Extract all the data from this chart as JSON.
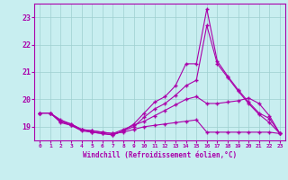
{
  "xlabel": "Windchill (Refroidissement éolien,°C)",
  "background_color": "#c8eef0",
  "grid_color": "#9ecfcf",
  "line_color": "#aa00aa",
  "x": [
    0,
    1,
    2,
    3,
    4,
    5,
    6,
    7,
    8,
    9,
    10,
    11,
    12,
    13,
    14,
    15,
    16,
    17,
    18,
    19,
    20,
    21,
    22,
    23
  ],
  "line1": [
    19.5,
    19.5,
    19.2,
    19.05,
    18.9,
    18.8,
    18.75,
    18.7,
    18.85,
    19.1,
    19.5,
    19.9,
    20.1,
    20.5,
    21.3,
    21.3,
    23.3,
    21.4,
    20.85,
    20.35,
    19.9,
    19.5,
    19.3,
    18.75
  ],
  "line2": [
    19.5,
    19.5,
    19.15,
    19.05,
    18.85,
    18.8,
    18.75,
    18.7,
    18.85,
    19.0,
    19.35,
    19.65,
    19.85,
    20.15,
    20.5,
    20.7,
    22.7,
    21.3,
    20.8,
    20.3,
    19.85,
    19.45,
    19.15,
    18.75
  ],
  "line3": [
    19.5,
    19.5,
    19.2,
    19.1,
    18.9,
    18.85,
    18.8,
    18.75,
    18.9,
    19.05,
    19.2,
    19.4,
    19.6,
    19.8,
    20.0,
    20.1,
    19.85,
    19.85,
    19.9,
    19.95,
    20.05,
    19.85,
    19.4,
    18.75
  ],
  "line4": [
    19.5,
    19.5,
    19.25,
    19.1,
    18.9,
    18.85,
    18.8,
    18.75,
    18.8,
    18.9,
    19.0,
    19.05,
    19.1,
    19.15,
    19.2,
    19.25,
    18.8,
    18.8,
    18.8,
    18.8,
    18.8,
    18.8,
    18.8,
    18.75
  ],
  "ylim": [
    18.5,
    23.5
  ],
  "xlim": [
    -0.5,
    23.5
  ],
  "yticks": [
    19,
    20,
    21,
    22,
    23
  ],
  "xticks": [
    0,
    1,
    2,
    3,
    4,
    5,
    6,
    7,
    8,
    9,
    10,
    11,
    12,
    13,
    14,
    15,
    16,
    17,
    18,
    19,
    20,
    21,
    22,
    23
  ]
}
